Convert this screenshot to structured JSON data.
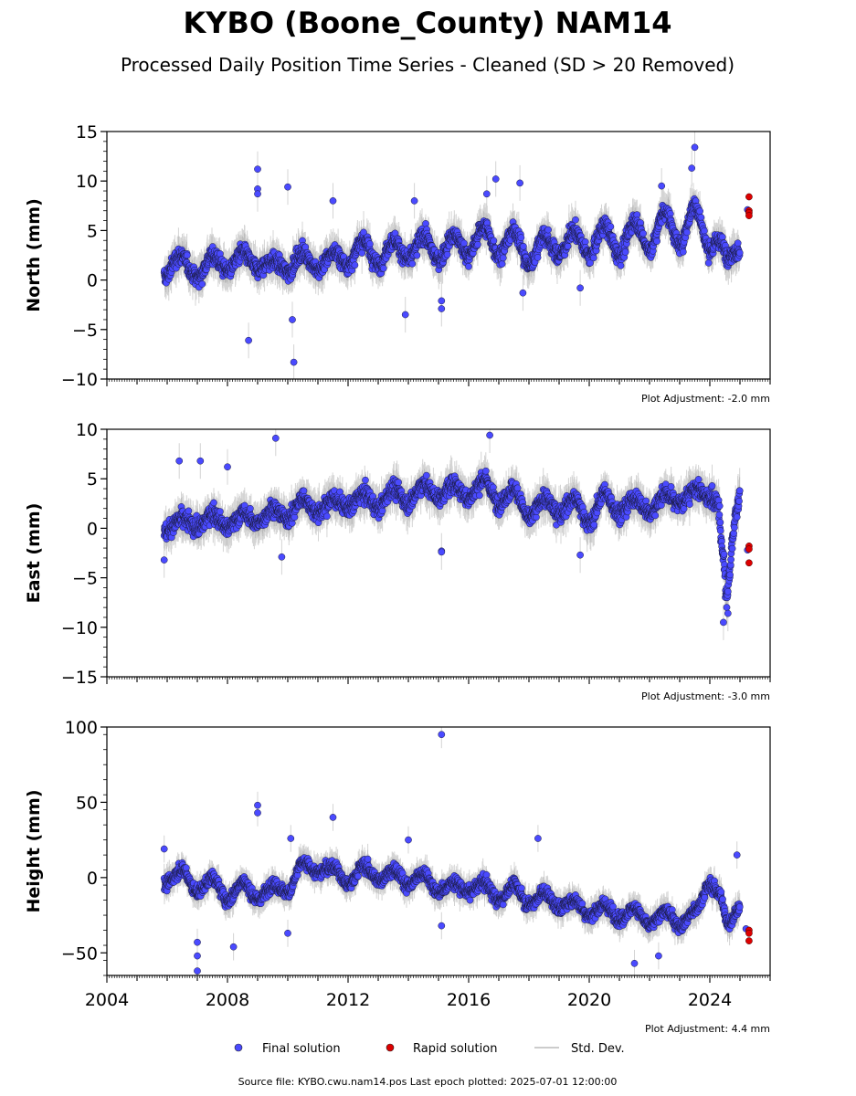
{
  "title": "KYBO (Boone_County) NAM14",
  "subtitle": "Processed Daily Position Time Series - Cleaned (SD > 20 Removed)",
  "legend": {
    "final": "Final solution",
    "rapid": "Rapid solution",
    "std": "Std. Dev."
  },
  "footer": "Source file: KYBO.cwu.nam14.pos  Last epoch plotted: 2025-07-01 12:00:00",
  "colors": {
    "final": "#4a4aff",
    "rapid": "#dd0000",
    "std": "#cccccc"
  },
  "chart_data": [
    {
      "type": "scatter",
      "ylabel": "North (mm)",
      "adjustment": "Plot Adjustment: -2.0 mm",
      "xlim": [
        2004,
        2026
      ],
      "ylim": [
        -10,
        15
      ],
      "yticks": [
        -10,
        -5,
        0,
        5,
        10,
        15
      ],
      "xticks": [
        2004,
        2008,
        2012,
        2016,
        2020,
        2024
      ],
      "xtick_labels_shown": false,
      "trend": {
        "knots": [
          [
            2005.9,
            0.2
          ],
          [
            2006.4,
            2.5
          ],
          [
            2007.0,
            0.3
          ],
          [
            2007.5,
            2.5
          ],
          [
            2008.0,
            1.0
          ],
          [
            2008.5,
            2.8
          ],
          [
            2009.0,
            1.0
          ],
          [
            2009.5,
            2.0
          ],
          [
            2010.0,
            0.8
          ],
          [
            2010.5,
            2.8
          ],
          [
            2011.0,
            1.0
          ],
          [
            2011.5,
            2.8
          ],
          [
            2012.0,
            1.5
          ],
          [
            2012.5,
            4.0
          ],
          [
            2013.0,
            1.5
          ],
          [
            2013.5,
            4.0
          ],
          [
            2014.0,
            2.0
          ],
          [
            2014.5,
            4.5
          ],
          [
            2015.0,
            2.0
          ],
          [
            2015.5,
            4.5
          ],
          [
            2016.0,
            2.5
          ],
          [
            2016.5,
            5.5
          ],
          [
            2017.0,
            2.5
          ],
          [
            2017.5,
            5.0
          ],
          [
            2018.0,
            1.5
          ],
          [
            2018.5,
            4.5
          ],
          [
            2019.0,
            2.5
          ],
          [
            2019.5,
            5.0
          ],
          [
            2020.0,
            2.5
          ],
          [
            2020.5,
            5.5
          ],
          [
            2021.0,
            2.5
          ],
          [
            2021.5,
            6.0
          ],
          [
            2022.0,
            3.0
          ],
          [
            2022.5,
            7.0
          ],
          [
            2023.0,
            3.5
          ],
          [
            2023.5,
            7.5
          ],
          [
            2024.0,
            3.0
          ],
          [
            2024.3,
            4.0
          ],
          [
            2024.6,
            2.5
          ],
          [
            2025.0,
            3.0
          ]
        ],
        "noise": 1.0,
        "range": [
          2005.9,
          2025.0
        ]
      },
      "outliers": [
        [
          2009.0,
          11.2
        ],
        [
          2009.0,
          9.2
        ],
        [
          2009.0,
          8.7
        ],
        [
          2008.7,
          -6.1
        ],
        [
          2010.0,
          9.4
        ],
        [
          2010.2,
          -8.3
        ],
        [
          2010.15,
          -4.0
        ],
        [
          2013.9,
          -3.5
        ],
        [
          2015.1,
          -2.1
        ],
        [
          2015.1,
          -2.9
        ],
        [
          2016.9,
          10.2
        ],
        [
          2017.7,
          9.8
        ],
        [
          2017.8,
          -1.3
        ],
        [
          2023.5,
          13.4
        ],
        [
          2023.4,
          11.3
        ],
        [
          2011.5,
          8.0
        ],
        [
          2014.2,
          8.0
        ],
        [
          2016.6,
          8.7
        ],
        [
          2022.4,
          9.5
        ],
        [
          2019.7,
          -0.8
        ]
      ],
      "rapid": [
        [
          2025.3,
          8.4
        ],
        [
          2025.3,
          7.0
        ],
        [
          2025.3,
          6.8
        ],
        [
          2025.3,
          6.5
        ]
      ],
      "rapid_final": [
        [
          2025.25,
          7.1
        ]
      ]
    },
    {
      "type": "scatter",
      "ylabel": "East (mm)",
      "adjustment": "Plot Adjustment: -3.0 mm",
      "xlim": [
        2004,
        2026
      ],
      "ylim": [
        -15,
        10
      ],
      "yticks": [
        -15,
        -10,
        -5,
        0,
        5,
        10
      ],
      "xticks": [
        2004,
        2008,
        2012,
        2016,
        2020,
        2024
      ],
      "xtick_labels_shown": false,
      "trend": {
        "knots": [
          [
            2005.9,
            -0.5
          ],
          [
            2006.5,
            1.0
          ],
          [
            2007.0,
            0.0
          ],
          [
            2007.5,
            1.5
          ],
          [
            2008.0,
            0.0
          ],
          [
            2008.5,
            1.5
          ],
          [
            2009.0,
            0.5
          ],
          [
            2009.5,
            2.0
          ],
          [
            2010.0,
            1.0
          ],
          [
            2010.5,
            3.0
          ],
          [
            2011.0,
            1.5
          ],
          [
            2011.5,
            3.0
          ],
          [
            2012.0,
            2.0
          ],
          [
            2012.5,
            3.5
          ],
          [
            2013.0,
            2.0
          ],
          [
            2013.5,
            4.0
          ],
          [
            2014.0,
            2.5
          ],
          [
            2014.5,
            4.5
          ],
          [
            2015.0,
            3.0
          ],
          [
            2015.5,
            4.5
          ],
          [
            2016.0,
            3.0
          ],
          [
            2016.5,
            5.0
          ],
          [
            2017.0,
            2.5
          ],
          [
            2017.5,
            4.0
          ],
          [
            2018.0,
            1.0
          ],
          [
            2018.5,
            3.0
          ],
          [
            2019.0,
            1.5
          ],
          [
            2019.5,
            3.0
          ],
          [
            2020.0,
            0.5
          ],
          [
            2020.5,
            3.5
          ],
          [
            2021.0,
            1.5
          ],
          [
            2021.5,
            3.0
          ],
          [
            2022.0,
            1.5
          ],
          [
            2022.5,
            3.5
          ],
          [
            2023.0,
            2.5
          ],
          [
            2023.5,
            4.0
          ],
          [
            2024.0,
            3.0
          ],
          [
            2024.3,
            2.5
          ]
        ],
        "noise": 1.0,
        "range": [
          2005.9,
          2024.3
        ]
      },
      "drop": {
        "knots": [
          [
            2024.3,
            1.5
          ],
          [
            2024.45,
            -3.0
          ],
          [
            2024.55,
            -7.0
          ],
          [
            2024.65,
            -5.0
          ],
          [
            2024.75,
            -1.0
          ],
          [
            2024.85,
            1.5
          ],
          [
            2025.0,
            3.5
          ]
        ],
        "noise": 1.2,
        "range": [
          2024.3,
          2025.0
        ]
      },
      "outliers": [
        [
          2006.4,
          6.8
        ],
        [
          2007.1,
          6.8
        ],
        [
          2008.0,
          6.2
        ],
        [
          2009.6,
          9.1
        ],
        [
          2016.7,
          9.4
        ],
        [
          2015.1,
          -2.3
        ],
        [
          2015.1,
          -2.4
        ],
        [
          2005.9,
          -3.2
        ],
        [
          2024.45,
          -9.5
        ],
        [
          2024.6,
          -8.6
        ],
        [
          2019.7,
          -2.7
        ],
        [
          2009.8,
          -2.9
        ]
      ],
      "rapid": [
        [
          2025.3,
          -1.8
        ],
        [
          2025.3,
          -2.1
        ],
        [
          2025.3,
          -3.5
        ]
      ],
      "rapid_final": [
        [
          2025.25,
          -2.2
        ]
      ]
    },
    {
      "type": "scatter",
      "ylabel": "Height (mm)",
      "adjustment": "Plot Adjustment: 4.4 mm",
      "xlim": [
        2004,
        2026
      ],
      "ylim": [
        -65,
        100
      ],
      "yticks": [
        -50,
        0,
        50,
        100
      ],
      "xticks": [
        2004,
        2008,
        2012,
        2016,
        2020,
        2024
      ],
      "xtick_labels_shown": true,
      "trend": {
        "knots": [
          [
            2005.9,
            -5.0
          ],
          [
            2006.5,
            5.0
          ],
          [
            2007.0,
            -10.0
          ],
          [
            2007.5,
            0.0
          ],
          [
            2008.0,
            -15.0
          ],
          [
            2008.5,
            -3.0
          ],
          [
            2009.0,
            -15.0
          ],
          [
            2009.5,
            -5.0
          ],
          [
            2010.0,
            -10.0
          ],
          [
            2010.5,
            10.0
          ],
          [
            2011.0,
            3.0
          ],
          [
            2011.5,
            8.0
          ],
          [
            2012.0,
            -5.0
          ],
          [
            2012.5,
            8.0
          ],
          [
            2013.0,
            -2.0
          ],
          [
            2013.5,
            5.0
          ],
          [
            2014.0,
            -5.0
          ],
          [
            2014.5,
            3.0
          ],
          [
            2015.0,
            -10.0
          ],
          [
            2015.5,
            -3.0
          ],
          [
            2016.0,
            -10.0
          ],
          [
            2016.5,
            -3.0
          ],
          [
            2017.0,
            -15.0
          ],
          [
            2017.5,
            -5.0
          ],
          [
            2018.0,
            -18.0
          ],
          [
            2018.5,
            -10.0
          ],
          [
            2019.0,
            -20.0
          ],
          [
            2019.5,
            -15.0
          ],
          [
            2020.0,
            -25.0
          ],
          [
            2020.5,
            -18.0
          ],
          [
            2021.0,
            -28.0
          ],
          [
            2021.5,
            -20.0
          ],
          [
            2022.0,
            -32.0
          ],
          [
            2022.5,
            -22.0
          ],
          [
            2023.0,
            -32.0
          ],
          [
            2023.5,
            -22.0
          ],
          [
            2024.0,
            -5.0
          ],
          [
            2024.3,
            -10.0
          ],
          [
            2024.6,
            -30.0
          ],
          [
            2025.0,
            -20.0
          ]
        ],
        "noise": 5.0,
        "range": [
          2005.9,
          2025.0
        ]
      },
      "outliers": [
        [
          2015.1,
          95.0
        ],
        [
          2009.0,
          48.0
        ],
        [
          2009.0,
          43.0
        ],
        [
          2011.5,
          40.0
        ],
        [
          2018.3,
          26.0
        ],
        [
          2014.0,
          25.0
        ],
        [
          2007.0,
          -62.0
        ],
        [
          2007.0,
          -52.0
        ],
        [
          2007.0,
          -43.0
        ],
        [
          2021.5,
          -57.0
        ],
        [
          2015.1,
          -32.0
        ],
        [
          2022.3,
          -52.0
        ],
        [
          2024.9,
          15.0
        ],
        [
          2008.2,
          -46.0
        ],
        [
          2010.0,
          -37.0
        ],
        [
          2005.9,
          19.0
        ],
        [
          2010.1,
          26.0
        ]
      ],
      "rapid": [
        [
          2025.3,
          -35.0
        ],
        [
          2025.3,
          -37.0
        ],
        [
          2025.3,
          -42.0
        ]
      ],
      "rapid_final": [
        [
          2025.2,
          -34.0
        ]
      ]
    }
  ]
}
